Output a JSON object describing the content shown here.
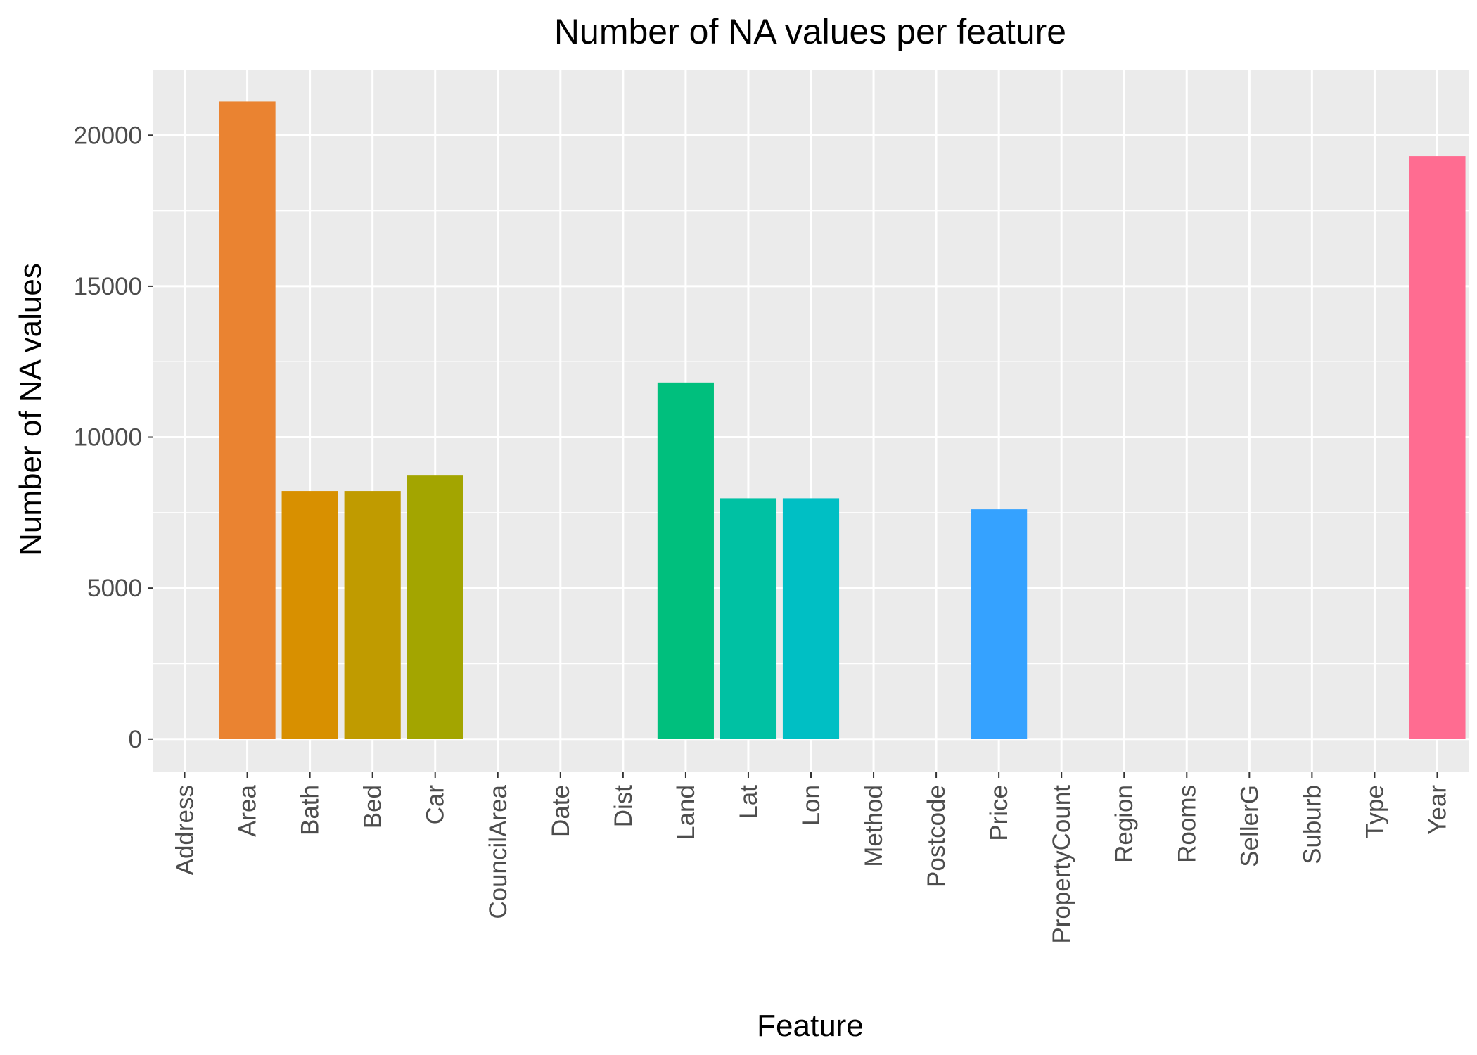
{
  "chart_data": {
    "type": "bar",
    "title": "Number of NA values per feature",
    "xlabel": "Feature",
    "ylabel": "Number of NA values",
    "categories": [
      "Address",
      "Area",
      "Bath",
      "Bed",
      "Car",
      "CouncilArea",
      "Date",
      "Dist",
      "Land",
      "Lat",
      "Lon",
      "Method",
      "Postcode",
      "Price",
      "PropertyCount",
      "Region",
      "Rooms",
      "SellerG",
      "Suburb",
      "Type",
      "Year"
    ],
    "values": [
      0,
      21115,
      8217,
      8217,
      8728,
      0,
      0,
      0,
      11810,
      7976,
      7976,
      0,
      0,
      7610,
      0,
      0,
      0,
      0,
      0,
      0,
      19306
    ],
    "colors": [
      "#F8766D",
      "#EA8331",
      "#D89000",
      "#C09B00",
      "#A3A500",
      "#7CAE00",
      "#39B600",
      "#00BB4E",
      "#00BF7D",
      "#00C1A3",
      "#00BFC4",
      "#00BAE0",
      "#00B0F6",
      "#35A2FF",
      "#9590FF",
      "#C77CFF",
      "#E76BF3",
      "#FA62DB",
      "#FF62BC",
      "#FF6C91",
      "#FF6C91"
    ],
    "ylim": [
      -1100,
      22150
    ],
    "yticks": [
      0,
      5000,
      10000,
      15000,
      20000
    ],
    "grid": true,
    "legend": "none",
    "panel_background": "#EBEBEB",
    "grid_color": "#FFFFFF"
  }
}
